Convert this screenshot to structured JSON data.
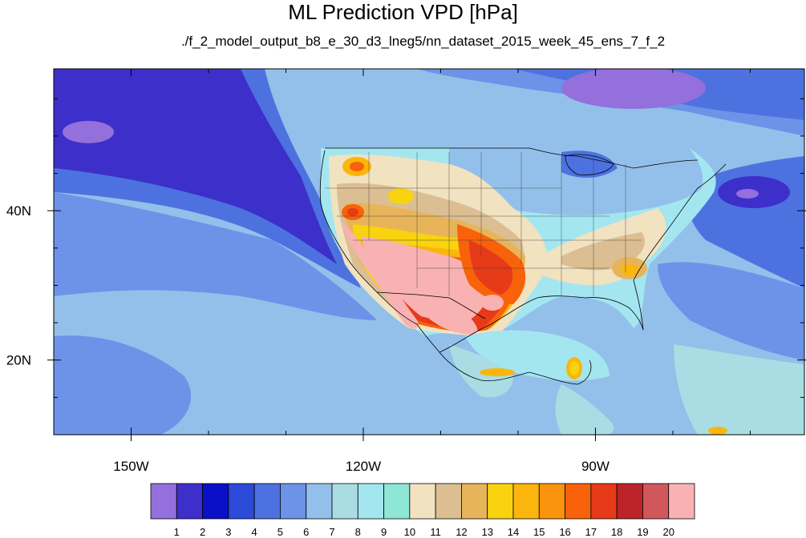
{
  "chart_data": {
    "type": "heatmap",
    "title": "ML Prediction VPD [hPa]",
    "subtitle": "./f_2_model_output_b8_e_30_d3_lneg5/nn_dataset_2015_week_45_ens_7_f_2",
    "x_axis": {
      "range": [
        -160,
        -63
      ],
      "ticks": [
        {
          "value": -150,
          "label": "150W"
        },
        {
          "value": -120,
          "label": "120W"
        },
        {
          "value": -90,
          "label": "90W"
        }
      ]
    },
    "y_axis": {
      "range": [
        10,
        59
      ],
      "ticks": [
        {
          "value": 20,
          "label": "20N"
        },
        {
          "value": 40,
          "label": "40N"
        }
      ]
    },
    "colorbar": {
      "levels": [
        "1",
        "2",
        "3",
        "4",
        "5",
        "6",
        "7",
        "8",
        "9",
        "10",
        "11",
        "12",
        "13",
        "14",
        "15",
        "16",
        "17",
        "18",
        "19",
        "20"
      ],
      "colors": [
        "#9370db",
        "#3d2fc9",
        "#0a10c8",
        "#2c4ad8",
        "#4d72e0",
        "#6d93e8",
        "#93c0ea",
        "#a9dde3",
        "#a3e6f0",
        "#8ee6d5",
        "#f1e2c0",
        "#dbbe92",
        "#e7b459",
        "#f9d30f",
        "#fbb50c",
        "#f9940c",
        "#f8620a",
        "#e63a18",
        "#bd2429",
        "#d0575a",
        "#f9b2b2"
      ]
    },
    "grid": false
  }
}
